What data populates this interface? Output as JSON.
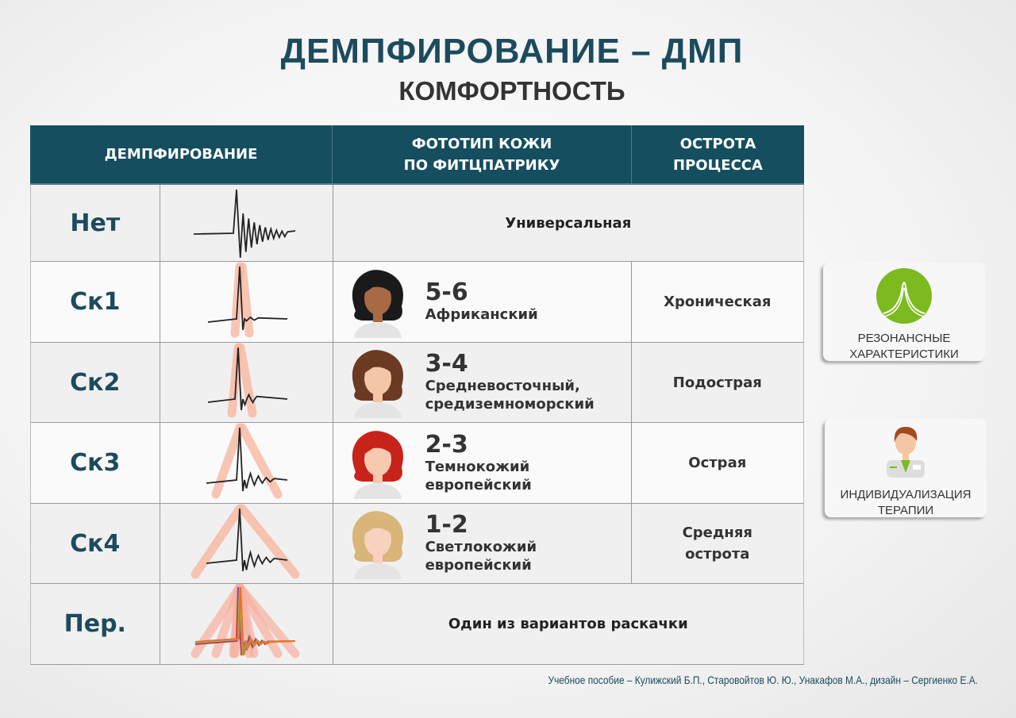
{
  "title": "ДЕМПФИРОВАНИЕ – ДМП",
  "subtitle": "КОМФОРТНОСТЬ",
  "colors": {
    "header": "#154e5f",
    "label": "#1b4b5d",
    "bars": "#f8b8a2",
    "green": "#7dba1f"
  },
  "table": {
    "headers": [
      "ДЕМПФИРОВАНИЕ",
      "ФОТОТИП КОЖИ\nПО ФИТЦПАТРИКУ",
      "ОСТРОТА\nПРОЦЕССА"
    ],
    "rows": [
      {
        "label": "Нет",
        "span": "Универсальная"
      },
      {
        "label": "Ск1",
        "phototype": "5-6",
        "desc": "Африканский",
        "hair": "#1a1a1a",
        "skin": "#a86a45",
        "acuity": "Хроническая"
      },
      {
        "label": "Ск2",
        "phototype": "3-4",
        "desc": "Средневосточный,\nсредиземноморский",
        "hair": "#6b3a22",
        "skin": "#f3c6a8",
        "acuity": "Подострая"
      },
      {
        "label": "Ск3",
        "phototype": "2-3",
        "desc": "Темнокожий\nевропейский",
        "hair": "#c8231b",
        "skin": "#f6c9b0",
        "acuity": "Острая"
      },
      {
        "label": "Ск4",
        "phototype": "1-2",
        "desc": "Светлокожий\nевропейский",
        "hair": "#d9b57a",
        "skin": "#f8d2bf",
        "acuity": "Средняя\nострота"
      },
      {
        "label": "Пер.",
        "span": "Один из вариантов раскачки"
      }
    ]
  },
  "cards": [
    {
      "label": "РЕЗОНАНСНЫЕ\nХАРАКТЕРИСТИКИ",
      "icon": "resonance-curve-icon"
    },
    {
      "label": "ИНДИВИДУАЛИЗАЦИЯ\nТЕРАПИИ",
      "icon": "doctor-icon"
    }
  ],
  "footer": "Учебное пособие – Кулижский Б.П., Старовойтов Ю. Ю., Унакафов М.А.,  дизайн – Сергиенко Е.А."
}
